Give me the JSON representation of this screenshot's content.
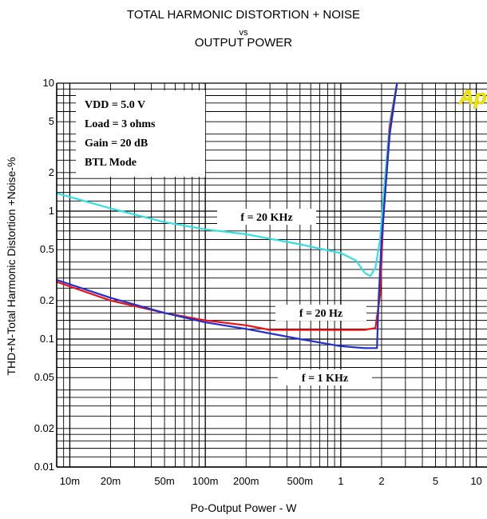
{
  "chart_data": {
    "type": "line",
    "title_lines": [
      "TOTAL HARMONIC DISTORTION + NOISE",
      "vs",
      "OUTPUT POWER"
    ],
    "xlabel": "Po-Output Power - W",
    "ylabel": "THD+N-Total Harmonic Distortion +Noise-%",
    "xscale": "log",
    "yscale": "log",
    "xlim": [
      0.008,
      12
    ],
    "ylim": [
      0.01,
      10
    ],
    "grid": true,
    "x_ticks": [
      {
        "value": 0.01,
        "label": "10m"
      },
      {
        "value": 0.02,
        "label": "20m"
      },
      {
        "value": 0.05,
        "label": "50m"
      },
      {
        "value": 0.1,
        "label": "100m"
      },
      {
        "value": 0.2,
        "label": "200m"
      },
      {
        "value": 0.5,
        "label": "500m"
      },
      {
        "value": 1,
        "label": "1"
      },
      {
        "value": 2,
        "label": "2"
      },
      {
        "value": 5,
        "label": "5"
      },
      {
        "value": 10,
        "label": "10"
      }
    ],
    "y_ticks": [
      {
        "value": 0.01,
        "label": "0.01"
      },
      {
        "value": 0.02,
        "label": "0.02"
      },
      {
        "value": 0.05,
        "label": "0.05"
      },
      {
        "value": 0.1,
        "label": "0.1"
      },
      {
        "value": 0.2,
        "label": "0.2"
      },
      {
        "value": 0.5,
        "label": "0.5"
      },
      {
        "value": 1,
        "label": "1"
      },
      {
        "value": 2,
        "label": "2"
      },
      {
        "value": 5,
        "label": "5"
      },
      {
        "value": 10,
        "label": "10"
      }
    ],
    "conditions_box": [
      "VDD = 5.0 V",
      "Load = 3 ohms",
      "Gain = 20 dB",
      "BTL Mode"
    ],
    "logo": "Ap",
    "series": [
      {
        "name": "f = 20 KHz",
        "color": "#33e0e0",
        "points": [
          [
            0.008,
            1.38
          ],
          [
            0.02,
            1.05
          ],
          [
            0.05,
            0.82
          ],
          [
            0.1,
            0.72
          ],
          [
            0.2,
            0.66
          ],
          [
            0.5,
            0.55
          ],
          [
            1,
            0.47
          ],
          [
            1.3,
            0.41
          ],
          [
            1.5,
            0.33
          ],
          [
            1.65,
            0.31
          ],
          [
            1.8,
            0.36
          ],
          [
            1.95,
            0.6
          ],
          [
            2.1,
            1.6
          ],
          [
            2.3,
            5
          ],
          [
            2.6,
            10
          ]
        ]
      },
      {
        "name": "f = 20 Hz",
        "color": "#ee1111",
        "points": [
          [
            0.008,
            0.28
          ],
          [
            0.02,
            0.2
          ],
          [
            0.05,
            0.16
          ],
          [
            0.1,
            0.14
          ],
          [
            0.2,
            0.128
          ],
          [
            0.3,
            0.118
          ],
          [
            0.5,
            0.118
          ],
          [
            1,
            0.118
          ],
          [
            1.5,
            0.118
          ],
          [
            1.8,
            0.122
          ],
          [
            1.95,
            0.22
          ],
          [
            2.05,
            0.8
          ],
          [
            2.3,
            4.5
          ],
          [
            2.6,
            10
          ]
        ]
      },
      {
        "name": "f = 1 KHz",
        "color": "#1f2fd0",
        "points": [
          [
            0.008,
            0.29
          ],
          [
            0.02,
            0.21
          ],
          [
            0.05,
            0.16
          ],
          [
            0.1,
            0.135
          ],
          [
            0.2,
            0.12
          ],
          [
            0.5,
            0.1
          ],
          [
            1,
            0.088
          ],
          [
            1.5,
            0.085
          ],
          [
            1.85,
            0.085
          ],
          [
            1.9,
            0.2
          ],
          [
            2.0,
            0.6
          ],
          [
            2.3,
            4
          ],
          [
            2.6,
            10
          ]
        ]
      }
    ]
  }
}
